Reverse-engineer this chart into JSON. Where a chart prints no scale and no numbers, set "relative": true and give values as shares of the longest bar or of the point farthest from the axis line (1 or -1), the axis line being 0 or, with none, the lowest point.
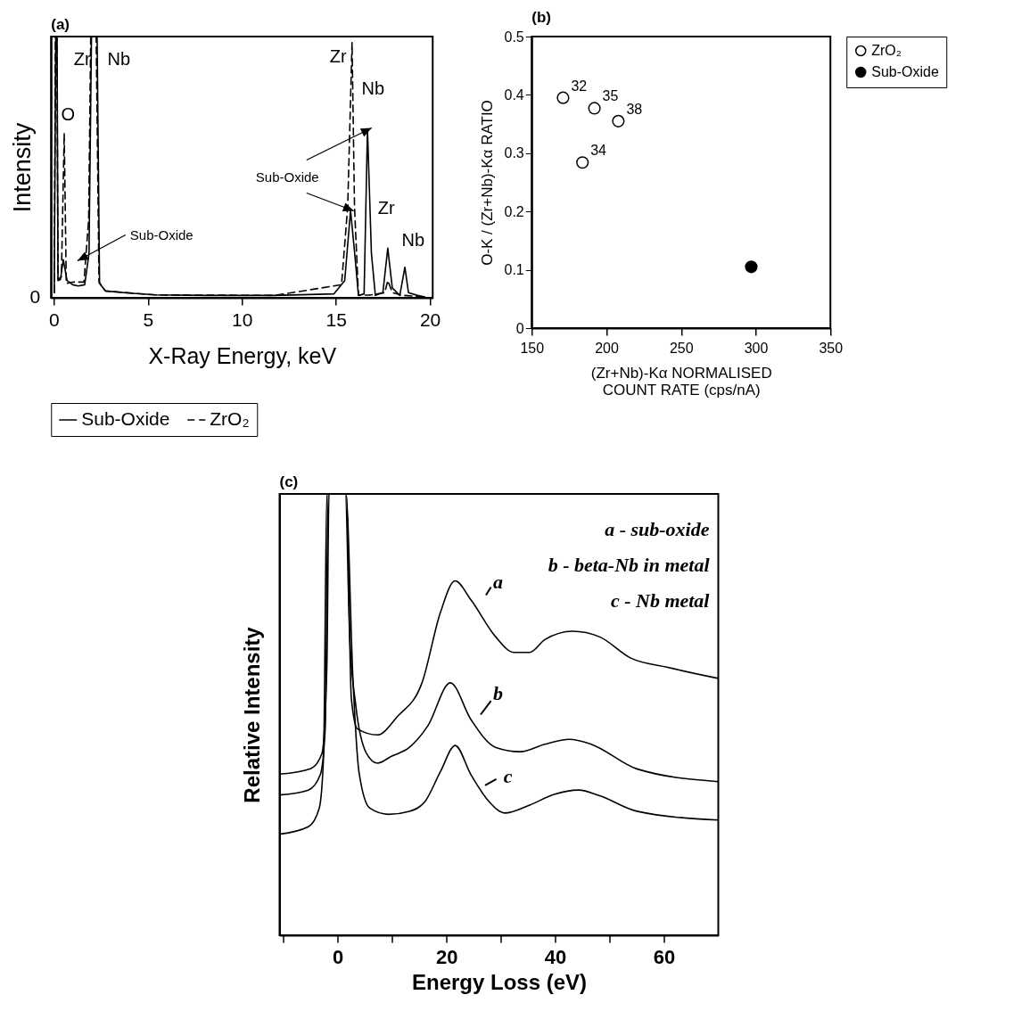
{
  "chart_data": [
    {
      "type": "line",
      "title": "(a)",
      "xlabel": "X-Ray Energy, keV",
      "ylabel": "Intensity",
      "relative": true,
      "xlim": [
        -0.15,
        20.15
      ],
      "xticks": [
        0,
        5,
        10,
        15,
        20
      ],
      "legend": "bottom",
      "series": [
        {
          "name": "Sub-Oxide",
          "color": "#000000",
          "line_style": "solid",
          "x": [
            0.02,
            0.1,
            0.17,
            0.22,
            0.35,
            0.5,
            0.7,
            1.0,
            1.3,
            1.64,
            1.87,
            2.0,
            2.3,
            2.43,
            2.75,
            4,
            5.4,
            8,
            11.75,
            14.9,
            15.47,
            15.78,
            16.0,
            16.2,
            16.5,
            16.68,
            16.89,
            17.1,
            17.5,
            17.76,
            18.0,
            18.4,
            18.67,
            18.86,
            19.34,
            19.73
          ],
          "values": [
            0.02,
            1,
            1,
            0.066,
            0.07,
            0.146,
            0.066,
            0.05,
            0.045,
            0.05,
            0.17,
            1,
            1,
            0.055,
            0.026,
            0.018,
            0.011,
            0.009,
            0.009,
            0.015,
            0.066,
            0.334,
            0.17,
            0.009,
            0.015,
            0.647,
            0.17,
            0.009,
            0.02,
            0.19,
            0.038,
            0.009,
            0.117,
            0.02,
            0.009,
            0.003
          ]
        },
        {
          "name": "ZrO₂",
          "color": "#000000",
          "line_style": "dashed",
          "x": [
            0.02,
            0.08,
            0.16,
            0.22,
            0.4,
            0.55,
            0.66,
            1.0,
            1.6,
            1.85,
            1.96,
            2.25,
            2.4,
            2.75,
            5.4,
            11.75,
            15.3,
            15.63,
            15.86,
            15.99,
            16.2,
            16.8,
            17.6,
            17.76,
            18.0,
            18.5,
            19.7
          ],
          "values": [
            0.02,
            1,
            1,
            0.07,
            0.08,
            0.63,
            0.055,
            0.06,
            0.06,
            0.3,
            1,
            1,
            0.06,
            0.026,
            0.011,
            0.009,
            0.05,
            0.35,
            0.977,
            0.35,
            0.01,
            0.01,
            0.02,
            0.066,
            0.02,
            0.01,
            0.003
          ]
        }
      ],
      "annotations": [
        "0",
        "O",
        "Zr",
        "Nb",
        "Zr",
        "Nb",
        "Zr",
        "Nb",
        "Sub-Oxide",
        "Sub-Oxide"
      ]
    },
    {
      "type": "scatter",
      "title": "(b)",
      "xlabel": "(Zr+Nb)-Kα NORMALISED\nCOUNT RATE (cps/nA)",
      "ylabel": "O-K / (Zr+Nb)-Kα RATIO",
      "xlim": [
        150,
        350
      ],
      "xticks": [
        150,
        200,
        250,
        300,
        350
      ],
      "ylim": [
        0,
        0.5
      ],
      "yticks": [
        0,
        0.1,
        0.2,
        0.3,
        0.4,
        0.5
      ],
      "marker": "circle",
      "legend": "right",
      "series": [
        {
          "name": "ZrO₂",
          "color": "#ffffff",
          "x": [
            171,
            192,
            208,
            184
          ],
          "values": [
            0.395,
            0.377,
            0.355,
            0.284
          ]
        },
        {
          "name": "Sub-Oxide",
          "color": "#000000",
          "x": [
            297
          ],
          "values": [
            0.105
          ]
        }
      ],
      "annotations": [
        {
          "text": "32",
          "x": 171,
          "y": 0.395
        },
        {
          "text": "35",
          "x": 192,
          "y": 0.377
        },
        {
          "text": "38",
          "x": 208,
          "y": 0.355
        },
        {
          "text": "34",
          "x": 184,
          "y": 0.284
        }
      ]
    },
    {
      "type": "line",
      "title": "(c)",
      "xlabel": "Energy Loss (eV)",
      "ylabel": "Relative Intensity",
      "relative": true,
      "xlim": [
        -10.7,
        70
      ],
      "xticks": [
        {
          "value": -10,
          "label": null
        },
        0,
        {
          "value": 10,
          "label": null
        },
        20,
        {
          "value": 30,
          "label": null
        },
        40,
        {
          "value": 50,
          "label": null
        },
        60
      ],
      "series": [
        {
          "color": "#000000",
          "line_style": "solid",
          "x": [
            -10.7,
            -4.9,
            -2.9,
            -2.0,
            -1.6,
            1.6,
            2.5,
            3.6,
            7.3,
            11.0,
            15.5,
            18.9,
            21.6,
            24.5,
            29.0,
            32.4,
            35.3,
            38.1,
            43.2,
            48.2,
            53.9,
            60.7,
            70
          ],
          "values": [
            0.365,
            0.378,
            0.412,
            0.607,
            1,
            1,
            0.537,
            0.468,
            0.454,
            0.496,
            0.572,
            0.732,
            0.803,
            0.76,
            0.677,
            0.641,
            0.641,
            0.67,
            0.689,
            0.676,
            0.628,
            0.607,
            0.582
          ]
        },
        {
          "color": "#000000",
          "line_style": "solid",
          "x": [
            -10.7,
            -5.4,
            -3.2,
            -2.3,
            -1.75,
            1.4,
            2.2,
            3.3,
            5.3,
            7.3,
            9.8,
            13.2,
            16.6,
            20.7,
            24.5,
            29.0,
            33.6,
            38.1,
            42.6,
            46.6,
            55.0,
            70
          ],
          "values": [
            0.318,
            0.329,
            0.364,
            0.468,
            1,
            1,
            0.677,
            0.523,
            0.412,
            0.39,
            0.405,
            0.426,
            0.475,
            0.572,
            0.489,
            0.426,
            0.416,
            0.433,
            0.444,
            0.433,
            0.377,
            0.348
          ]
        },
        {
          "color": "#000000",
          "line_style": "solid",
          "x": [
            -10.7,
            -5.4,
            -3.4,
            -2.6,
            -2.0,
            1.5,
            2.8,
            3.9,
            5.9,
            9.3,
            13.2,
            16.0,
            18.9,
            21.6,
            24.5,
            27.9,
            30.7,
            35.3,
            39.8,
            44.3,
            48.2,
            55.0,
            70
          ],
          "values": [
            0.229,
            0.246,
            0.288,
            0.406,
            1,
            1,
            0.58,
            0.371,
            0.288,
            0.274,
            0.281,
            0.302,
            0.371,
            0.43,
            0.364,
            0.302,
            0.277,
            0.295,
            0.319,
            0.329,
            0.316,
            0.281,
            0.261
          ]
        }
      ],
      "annotations": [
        "a - sub-oxide",
        "b - beta-Nb in metal",
        "c - Nb metal",
        "a",
        "b",
        "c"
      ]
    }
  ]
}
